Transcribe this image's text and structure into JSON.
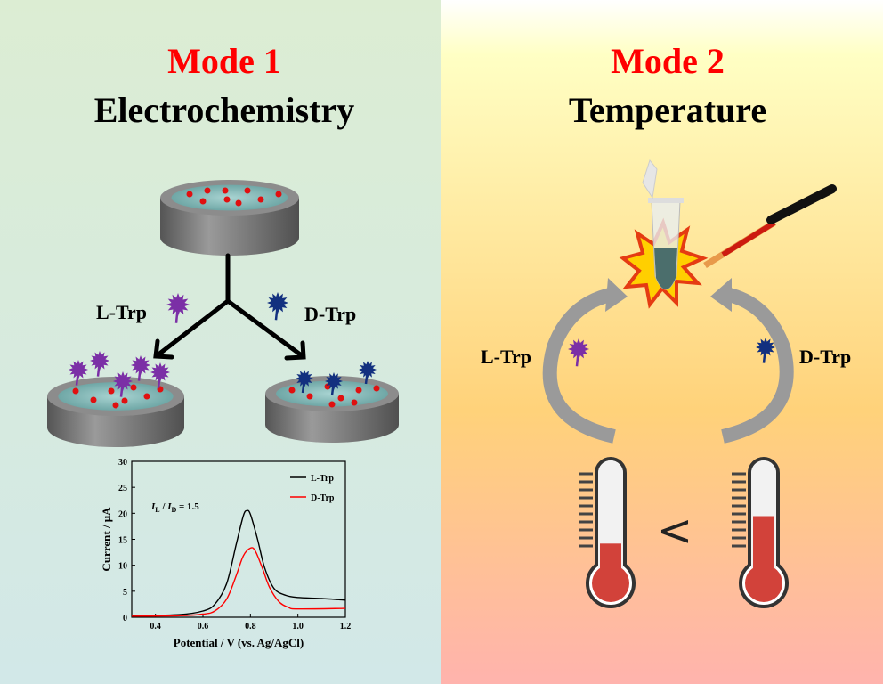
{
  "mode1": {
    "title": "Mode 1",
    "subtitle": "Electrochemistry",
    "left_label": "L-Trp",
    "right_label": "D-Trp"
  },
  "mode2": {
    "title": "Mode 2",
    "subtitle": "Temperature",
    "left_label": "L-Trp",
    "right_label": "D-Trp",
    "comparison": "<"
  },
  "colors": {
    "mode_title": "#ff0000",
    "l_trp": "#7b2fa6",
    "d_trp": "#12307f",
    "left_bg_top": "#dcedd3",
    "left_bg_bottom": "#d2e8e8",
    "right_bg_top": "#ffffc4",
    "right_bg_bottom": "#ffb3ad"
  },
  "thermometers": {
    "left_fill_fraction": 0.27,
    "right_fill_fraction": 0.55
  },
  "chart_data": {
    "type": "line",
    "xlabel": "Potential / V (vs. Ag/AgCl)",
    "ylabel": "Current / μA",
    "xlim": [
      0.3,
      1.2
    ],
    "ylim": [
      0,
      30
    ],
    "xticks": [
      "0.4",
      "0.6",
      "0.8",
      "1.0",
      "1.2"
    ],
    "xtick_values": [
      0.4,
      0.6,
      0.8,
      1.0,
      1.2
    ],
    "yticks": [
      "0",
      "5",
      "10",
      "15",
      "20",
      "25",
      "30"
    ],
    "ytick_values": [
      0,
      5,
      10,
      15,
      20,
      25,
      30
    ],
    "annotation": {
      "i": "I",
      "l_sub": "L",
      "sep": " / ",
      "d_sub": "D",
      "value": " = 1.5"
    },
    "legend_position": "top-right",
    "series": [
      {
        "name": "L-Trp",
        "color": "#000000",
        "x": [
          0.3,
          0.5,
          0.6,
          0.65,
          0.7,
          0.74,
          0.77,
          0.785,
          0.8,
          0.83,
          0.86,
          0.9,
          0.95,
          1.0,
          1.1,
          1.2
        ],
        "y": [
          0.3,
          0.5,
          1.2,
          2.5,
          6.5,
          14,
          19.5,
          20.5,
          19.8,
          15,
          9.5,
          5.5,
          4.2,
          3.8,
          3.6,
          3.3
        ]
      },
      {
        "name": "D-Trp",
        "color": "#ff0000",
        "x": [
          0.3,
          0.5,
          0.6,
          0.65,
          0.7,
          0.74,
          0.77,
          0.8,
          0.82,
          0.85,
          0.88,
          0.92,
          0.96,
          1.0,
          1.2
        ],
        "y": [
          0.2,
          0.3,
          0.6,
          1.2,
          3.5,
          8,
          11.8,
          13.3,
          12.8,
          9.5,
          5.8,
          3,
          1.9,
          1.6,
          1.7
        ]
      }
    ]
  }
}
